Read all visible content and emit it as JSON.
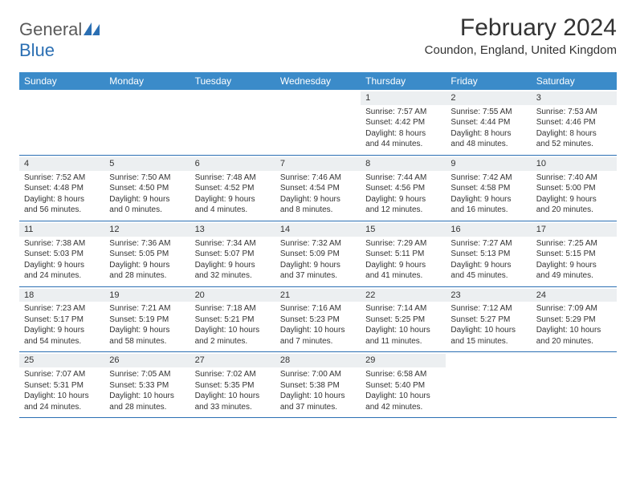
{
  "logo": {
    "text1": "General",
    "text2": "Blue"
  },
  "title": "February 2024",
  "location": "Coundon, England, United Kingdom",
  "colors": {
    "header_bg": "#3b8bc9",
    "rule": "#2b6fb3",
    "daynum_bg": "#eceff1",
    "text": "#333333",
    "logo_gray": "#5a5a5a",
    "logo_blue": "#2b6fb3",
    "page_bg": "#ffffff"
  },
  "dayNames": [
    "Sunday",
    "Monday",
    "Tuesday",
    "Wednesday",
    "Thursday",
    "Friday",
    "Saturday"
  ],
  "weeks": [
    [
      null,
      null,
      null,
      null,
      {
        "n": "1",
        "sr": "Sunrise: 7:57 AM",
        "ss": "Sunset: 4:42 PM",
        "d1": "Daylight: 8 hours",
        "d2": "and 44 minutes."
      },
      {
        "n": "2",
        "sr": "Sunrise: 7:55 AM",
        "ss": "Sunset: 4:44 PM",
        "d1": "Daylight: 8 hours",
        "d2": "and 48 minutes."
      },
      {
        "n": "3",
        "sr": "Sunrise: 7:53 AM",
        "ss": "Sunset: 4:46 PM",
        "d1": "Daylight: 8 hours",
        "d2": "and 52 minutes."
      }
    ],
    [
      {
        "n": "4",
        "sr": "Sunrise: 7:52 AM",
        "ss": "Sunset: 4:48 PM",
        "d1": "Daylight: 8 hours",
        "d2": "and 56 minutes."
      },
      {
        "n": "5",
        "sr": "Sunrise: 7:50 AM",
        "ss": "Sunset: 4:50 PM",
        "d1": "Daylight: 9 hours",
        "d2": "and 0 minutes."
      },
      {
        "n": "6",
        "sr": "Sunrise: 7:48 AM",
        "ss": "Sunset: 4:52 PM",
        "d1": "Daylight: 9 hours",
        "d2": "and 4 minutes."
      },
      {
        "n": "7",
        "sr": "Sunrise: 7:46 AM",
        "ss": "Sunset: 4:54 PM",
        "d1": "Daylight: 9 hours",
        "d2": "and 8 minutes."
      },
      {
        "n": "8",
        "sr": "Sunrise: 7:44 AM",
        "ss": "Sunset: 4:56 PM",
        "d1": "Daylight: 9 hours",
        "d2": "and 12 minutes."
      },
      {
        "n": "9",
        "sr": "Sunrise: 7:42 AM",
        "ss": "Sunset: 4:58 PM",
        "d1": "Daylight: 9 hours",
        "d2": "and 16 minutes."
      },
      {
        "n": "10",
        "sr": "Sunrise: 7:40 AM",
        "ss": "Sunset: 5:00 PM",
        "d1": "Daylight: 9 hours",
        "d2": "and 20 minutes."
      }
    ],
    [
      {
        "n": "11",
        "sr": "Sunrise: 7:38 AM",
        "ss": "Sunset: 5:03 PM",
        "d1": "Daylight: 9 hours",
        "d2": "and 24 minutes."
      },
      {
        "n": "12",
        "sr": "Sunrise: 7:36 AM",
        "ss": "Sunset: 5:05 PM",
        "d1": "Daylight: 9 hours",
        "d2": "and 28 minutes."
      },
      {
        "n": "13",
        "sr": "Sunrise: 7:34 AM",
        "ss": "Sunset: 5:07 PM",
        "d1": "Daylight: 9 hours",
        "d2": "and 32 minutes."
      },
      {
        "n": "14",
        "sr": "Sunrise: 7:32 AM",
        "ss": "Sunset: 5:09 PM",
        "d1": "Daylight: 9 hours",
        "d2": "and 37 minutes."
      },
      {
        "n": "15",
        "sr": "Sunrise: 7:29 AM",
        "ss": "Sunset: 5:11 PM",
        "d1": "Daylight: 9 hours",
        "d2": "and 41 minutes."
      },
      {
        "n": "16",
        "sr": "Sunrise: 7:27 AM",
        "ss": "Sunset: 5:13 PM",
        "d1": "Daylight: 9 hours",
        "d2": "and 45 minutes."
      },
      {
        "n": "17",
        "sr": "Sunrise: 7:25 AM",
        "ss": "Sunset: 5:15 PM",
        "d1": "Daylight: 9 hours",
        "d2": "and 49 minutes."
      }
    ],
    [
      {
        "n": "18",
        "sr": "Sunrise: 7:23 AM",
        "ss": "Sunset: 5:17 PM",
        "d1": "Daylight: 9 hours",
        "d2": "and 54 minutes."
      },
      {
        "n": "19",
        "sr": "Sunrise: 7:21 AM",
        "ss": "Sunset: 5:19 PM",
        "d1": "Daylight: 9 hours",
        "d2": "and 58 minutes."
      },
      {
        "n": "20",
        "sr": "Sunrise: 7:18 AM",
        "ss": "Sunset: 5:21 PM",
        "d1": "Daylight: 10 hours",
        "d2": "and 2 minutes."
      },
      {
        "n": "21",
        "sr": "Sunrise: 7:16 AM",
        "ss": "Sunset: 5:23 PM",
        "d1": "Daylight: 10 hours",
        "d2": "and 7 minutes."
      },
      {
        "n": "22",
        "sr": "Sunrise: 7:14 AM",
        "ss": "Sunset: 5:25 PM",
        "d1": "Daylight: 10 hours",
        "d2": "and 11 minutes."
      },
      {
        "n": "23",
        "sr": "Sunrise: 7:12 AM",
        "ss": "Sunset: 5:27 PM",
        "d1": "Daylight: 10 hours",
        "d2": "and 15 minutes."
      },
      {
        "n": "24",
        "sr": "Sunrise: 7:09 AM",
        "ss": "Sunset: 5:29 PM",
        "d1": "Daylight: 10 hours",
        "d2": "and 20 minutes."
      }
    ],
    [
      {
        "n": "25",
        "sr": "Sunrise: 7:07 AM",
        "ss": "Sunset: 5:31 PM",
        "d1": "Daylight: 10 hours",
        "d2": "and 24 minutes."
      },
      {
        "n": "26",
        "sr": "Sunrise: 7:05 AM",
        "ss": "Sunset: 5:33 PM",
        "d1": "Daylight: 10 hours",
        "d2": "and 28 minutes."
      },
      {
        "n": "27",
        "sr": "Sunrise: 7:02 AM",
        "ss": "Sunset: 5:35 PM",
        "d1": "Daylight: 10 hours",
        "d2": "and 33 minutes."
      },
      {
        "n": "28",
        "sr": "Sunrise: 7:00 AM",
        "ss": "Sunset: 5:38 PM",
        "d1": "Daylight: 10 hours",
        "d2": "and 37 minutes."
      },
      {
        "n": "29",
        "sr": "Sunrise: 6:58 AM",
        "ss": "Sunset: 5:40 PM",
        "d1": "Daylight: 10 hours",
        "d2": "and 42 minutes."
      },
      null,
      null
    ]
  ]
}
